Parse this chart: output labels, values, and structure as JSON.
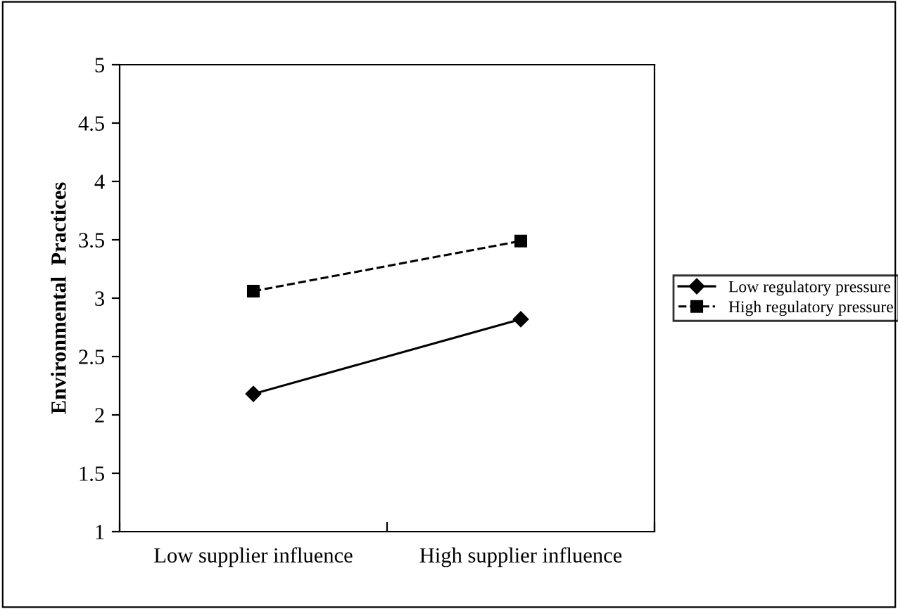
{
  "chart_data": {
    "type": "line",
    "ylabel": "Environmental  Practices",
    "categories": [
      "Low supplier influence",
      "High supplier influence"
    ],
    "series": [
      {
        "name": "Low regulatory pressure",
        "color": "#000000",
        "values": [
          2.18,
          2.82
        ],
        "marker": "diamond",
        "line_style": "solid"
      },
      {
        "name": "High regulatory pressure",
        "color": "#000000",
        "values": [
          3.06,
          3.49
        ],
        "marker": "square",
        "line_style": "dashed"
      }
    ],
    "ylim": [
      1,
      5
    ],
    "yticks": [
      1,
      1.5,
      2,
      2.5,
      3,
      3.5,
      4,
      4.5,
      5
    ],
    "grid": false,
    "legend": "right"
  }
}
